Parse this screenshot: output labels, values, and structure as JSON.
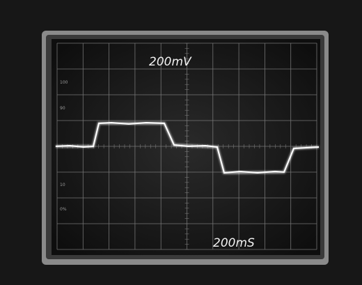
{
  "screen": {
    "volts_per_div": "200mV",
    "time_per_div": "200mS",
    "graticule_labels": [
      "100",
      "90",
      "10",
      "0%"
    ]
  }
}
